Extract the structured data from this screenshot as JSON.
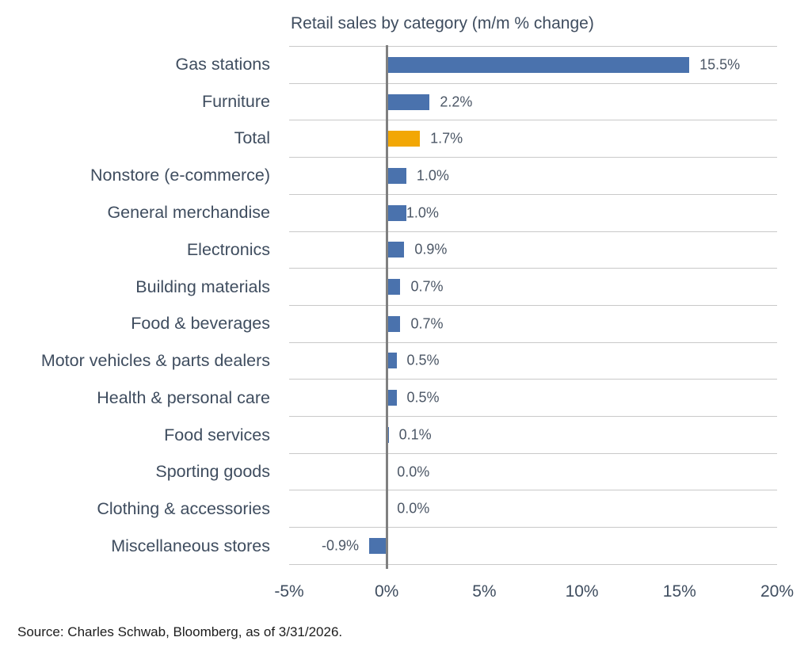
{
  "chart_data": {
    "type": "bar",
    "orientation": "horizontal",
    "title": "Retail sales by category (m/m % change)",
    "categories": [
      "Gas stations",
      "Furniture",
      "Total",
      "Nonstore (e-commerce)",
      "General merchandise",
      "Electronics",
      "Building materials",
      "Food & beverages",
      "Motor vehicles & parts dealers",
      "Health & personal care",
      "Food services",
      "Sporting goods",
      "Clothing & accessories",
      "Miscellaneous stores"
    ],
    "values": [
      15.5,
      2.2,
      1.7,
      1.0,
      1.0,
      0.9,
      0.7,
      0.7,
      0.5,
      0.5,
      0.1,
      0.0,
      0.0,
      -0.9
    ],
    "value_labels": [
      "15.5%",
      "2.2%",
      "1.7%",
      "1.0%",
      "1.0%",
      "0.9%",
      "0.7%",
      "0.7%",
      "0.5%",
      "0.5%",
      "0.1%",
      "0.0%",
      "0.0%",
      "-0.9%"
    ],
    "highlight_category": "Total",
    "bar_color": "#4a72ad",
    "highlight_color": "#f2a705",
    "xlim": [
      -5,
      20
    ],
    "x_tick_values": [
      -5,
      0,
      5,
      10,
      15,
      20
    ],
    "x_tick_labels": [
      "-5%",
      "0%",
      "5%",
      "10%",
      "15%",
      "20%"
    ],
    "xlabel": "",
    "ylabel": "",
    "grid": "row-separators-horizontal",
    "legend": "none",
    "zero_line_color": "#808080",
    "gridline_color": "#c9c9c9"
  },
  "footer": {
    "source": "Source: Charles Schwab, Bloomberg, as of 3/31/2026."
  }
}
